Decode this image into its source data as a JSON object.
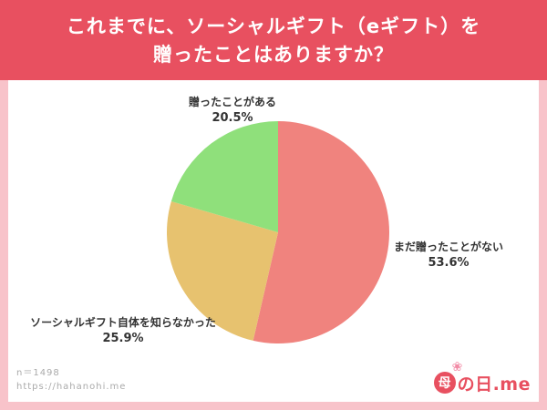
{
  "header": {
    "title_line1": "これまでに、ソーシャルギフト（eギフト）を",
    "title_line2": "贈ったことはありますか？"
  },
  "chart_data": {
    "type": "pie",
    "title": "これまでに、ソーシャルギフト（eギフト）を贈ったことはありますか？",
    "start_angle": 0,
    "direction": "clockwise",
    "legend_position": "outside-labels",
    "slices": [
      {
        "label": "まだ贈ったことがない",
        "value": 53.6,
        "pct": "53.6%",
        "color": "#f0837e"
      },
      {
        "label": "ソーシャルギフト自体を知らなかった",
        "value": 25.9,
        "pct": "25.9%",
        "color": "#e7c26f"
      },
      {
        "label": "贈ったことがある",
        "value": 20.5,
        "pct": "20.5%",
        "color": "#8fe07b"
      }
    ]
  },
  "footer": {
    "sample_size": "n＝1498",
    "url": "https://hahanohi.me",
    "logo": {
      "mark": "母",
      "text": "の日.me",
      "flower_icon": "❀",
      "brand_color": "#e85060"
    }
  }
}
